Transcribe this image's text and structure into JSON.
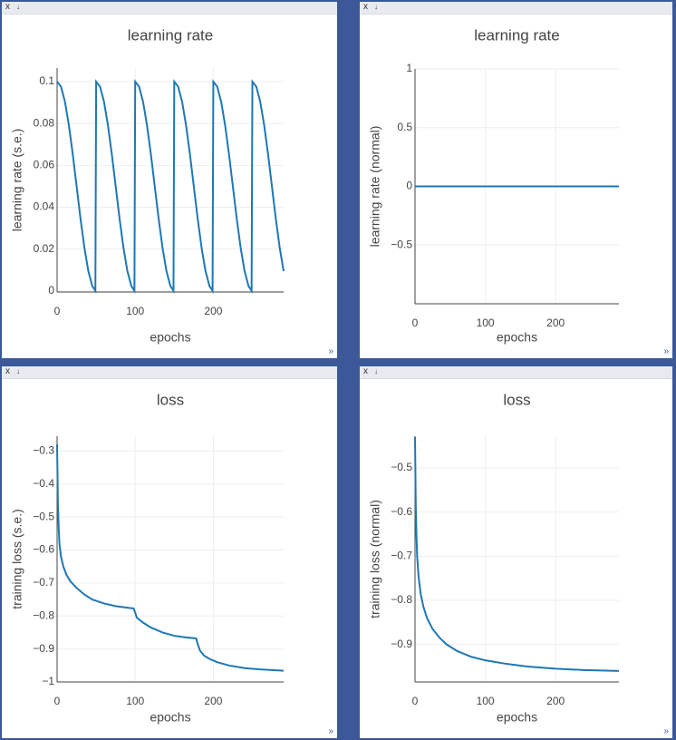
{
  "window_controls": {
    "close": "x",
    "download": "↓",
    "expand": "»"
  },
  "chart_data": [
    {
      "type": "line",
      "title": "learning rate",
      "x_label": "epochs",
      "y_label": "learning rate (s.e.)",
      "x": [
        0,
        5,
        10,
        15,
        20,
        25,
        30,
        35,
        40,
        45,
        49,
        50,
        55,
        60,
        65,
        70,
        75,
        80,
        85,
        90,
        95,
        99,
        100,
        105,
        110,
        115,
        120,
        125,
        130,
        135,
        140,
        145,
        149,
        150,
        155,
        160,
        165,
        170,
        175,
        180,
        185,
        190,
        195,
        199,
        200,
        205,
        210,
        215,
        220,
        225,
        230,
        235,
        240,
        245,
        249,
        250,
        255,
        260,
        265,
        270,
        275,
        280,
        285,
        290
      ],
      "series": [
        {
          "name": "learning rate",
          "color": "#1f77b4",
          "values": [
            0.1,
            0.0976,
            0.0905,
            0.0794,
            0.0655,
            0.05,
            0.0345,
            0.0206,
            0.0095,
            0.0024,
            0.0001,
            0.1,
            0.0976,
            0.0905,
            0.0794,
            0.0655,
            0.05,
            0.0345,
            0.0206,
            0.0095,
            0.0024,
            0.0001,
            0.1,
            0.0976,
            0.0905,
            0.0794,
            0.0655,
            0.05,
            0.0345,
            0.0206,
            0.0095,
            0.0024,
            0.0001,
            0.1,
            0.0976,
            0.0905,
            0.0794,
            0.0655,
            0.05,
            0.0345,
            0.0206,
            0.0095,
            0.0024,
            0.0001,
            0.1,
            0.0976,
            0.0905,
            0.0794,
            0.0655,
            0.05,
            0.0345,
            0.0206,
            0.0095,
            0.0024,
            0.0001,
            0.1,
            0.0976,
            0.0905,
            0.0794,
            0.0655,
            0.05,
            0.0345,
            0.0206,
            0.0095
          ]
        }
      ],
      "xlim": [
        0,
        290
      ],
      "xticks": [
        0,
        100,
        200
      ],
      "ylim": [
        -0.0005,
        0.1065
      ],
      "yticks": [
        0,
        0.02,
        0.04,
        0.06,
        0.08,
        0.1
      ],
      "grid": true
    },
    {
      "type": "line",
      "title": "learning rate",
      "x_label": "epochs",
      "y_label": "learning rate (normal)",
      "x": [
        0,
        290
      ],
      "series": [
        {
          "name": "learning rate",
          "color": "#1f77b4",
          "values": [
            0,
            0
          ]
        }
      ],
      "xlim": [
        0,
        290
      ],
      "xticks": [
        0,
        100,
        200
      ],
      "ylim": [
        -1,
        1
      ],
      "yticks": [
        {
          "value": -0.5,
          "label": "−0.5"
        },
        0,
        0.5,
        1
      ],
      "grid": true
    },
    {
      "type": "line",
      "title": "loss",
      "x_label": "epochs",
      "y_label": "training loss (s.e.)",
      "x": [
        0,
        1,
        2,
        3,
        5,
        8,
        12,
        17,
        25,
        35,
        45,
        60,
        75,
        90,
        98,
        100,
        102,
        110,
        120,
        135,
        150,
        165,
        178,
        180,
        183,
        188,
        195,
        205,
        220,
        240,
        260,
        290
      ],
      "series": [
        {
          "name": "loss",
          "color": "#1f77b4",
          "values": [
            -0.28,
            -0.45,
            -0.53,
            -0.58,
            -0.62,
            -0.65,
            -0.675,
            -0.695,
            -0.715,
            -0.735,
            -0.75,
            -0.762,
            -0.77,
            -0.775,
            -0.777,
            -0.79,
            -0.805,
            -0.82,
            -0.835,
            -0.85,
            -0.86,
            -0.865,
            -0.868,
            -0.885,
            -0.905,
            -0.92,
            -0.93,
            -0.94,
            -0.95,
            -0.958,
            -0.962,
            -0.966
          ]
        }
      ],
      "xlim": [
        0,
        290
      ],
      "xticks": [
        0,
        100,
        200
      ],
      "ylim": [
        -1,
        -0.255
      ],
      "yticks": [
        {
          "value": -1,
          "label": "−1"
        },
        {
          "value": -0.9,
          "label": "−0.9"
        },
        {
          "value": -0.8,
          "label": "−0.8"
        },
        {
          "value": -0.7,
          "label": "−0.7"
        },
        {
          "value": -0.6,
          "label": "−0.6"
        },
        {
          "value": -0.5,
          "label": "−0.5"
        },
        {
          "value": -0.4,
          "label": "−0.4"
        },
        {
          "value": -0.3,
          "label": "−0.3"
        }
      ],
      "grid": true
    },
    {
      "type": "line",
      "title": "loss",
      "x_label": "epochs",
      "y_label": "training loss (normal)",
      "x": [
        0,
        1,
        2,
        3,
        5,
        8,
        12,
        17,
        25,
        35,
        45,
        60,
        80,
        100,
        130,
        160,
        200,
        240,
        290
      ],
      "series": [
        {
          "name": "loss",
          "color": "#1f77b4",
          "values": [
            -0.43,
            -0.58,
            -0.65,
            -0.7,
            -0.745,
            -0.785,
            -0.815,
            -0.84,
            -0.865,
            -0.885,
            -0.9,
            -0.915,
            -0.928,
            -0.936,
            -0.944,
            -0.95,
            -0.955,
            -0.958,
            -0.96
          ]
        }
      ],
      "xlim": [
        0,
        290
      ],
      "xticks": [
        0,
        100,
        200
      ],
      "ylim": [
        -0.985,
        -0.428
      ],
      "yticks": [
        {
          "value": -0.9,
          "label": "−0.9"
        },
        {
          "value": -0.8,
          "label": "−0.8"
        },
        {
          "value": -0.7,
          "label": "−0.7"
        },
        {
          "value": -0.6,
          "label": "−0.6"
        },
        {
          "value": -0.5,
          "label": "−0.5"
        }
      ],
      "grid": true
    }
  ]
}
